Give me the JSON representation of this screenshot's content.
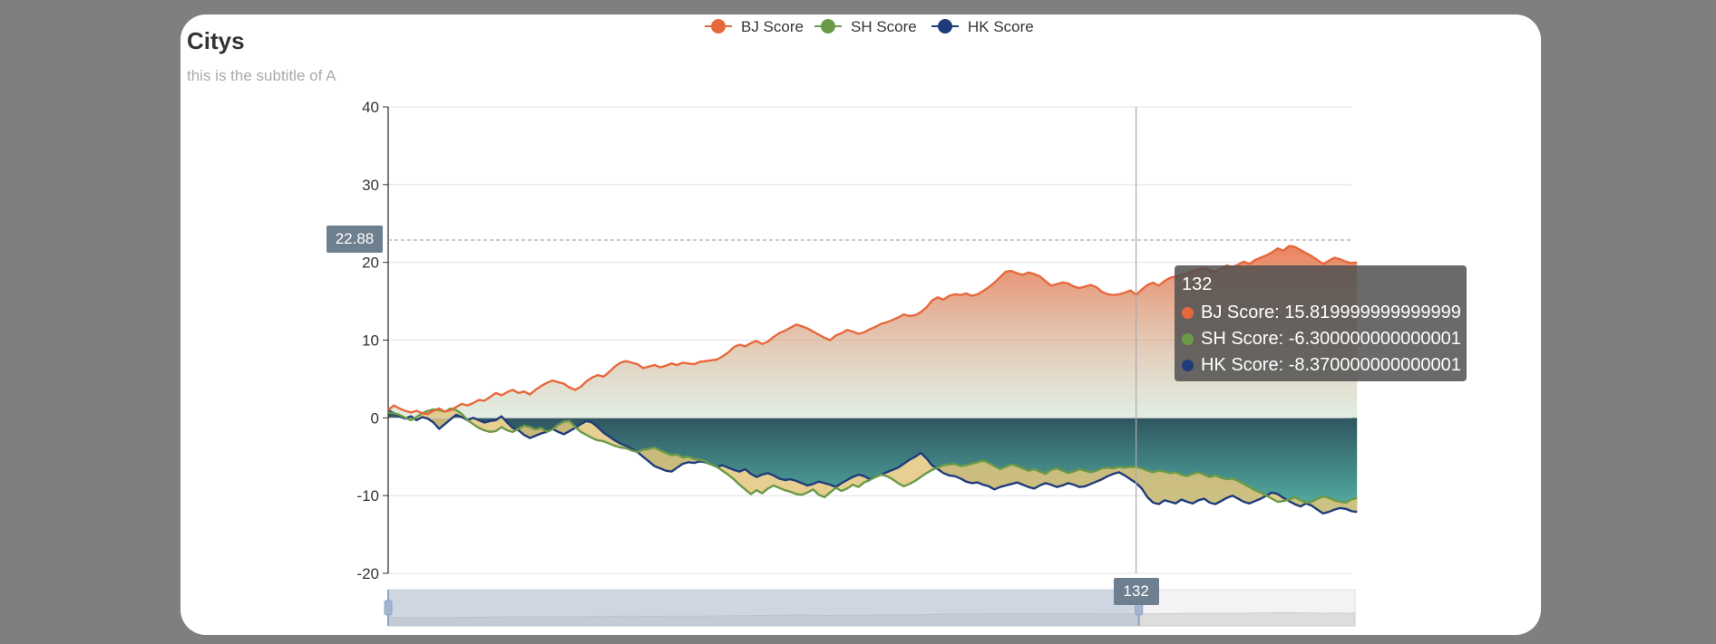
{
  "chart_data": {
    "type": "area",
    "title": "Citys",
    "subtitle": "this is the subtitle of A",
    "x": {
      "start": 0,
      "end": 170,
      "step": 1
    },
    "ylim": [
      -20,
      40
    ],
    "yticks": [
      40,
      30,
      20,
      10,
      0,
      -10,
      -20
    ],
    "grid": true,
    "legend_position": "top-center",
    "series": [
      {
        "name": "BJ Score",
        "color": "#e8683d",
        "values": [
          1.0,
          1.6,
          1.2,
          0.9,
          0.7,
          0.9,
          0.6,
          0.5,
          0.9,
          1.2,
          0.8,
          1.0,
          1.4,
          1.8,
          1.6,
          1.9,
          2.3,
          2.2,
          2.7,
          3.2,
          2.9,
          3.3,
          3.6,
          3.2,
          3.4,
          3.0,
          3.6,
          4.1,
          4.5,
          4.8,
          4.6,
          4.4,
          3.9,
          3.6,
          4.0,
          4.7,
          5.2,
          5.5,
          5.3,
          5.9,
          6.6,
          7.1,
          7.3,
          7.1,
          6.9,
          6.4,
          6.6,
          6.8,
          6.5,
          6.7,
          7.0,
          6.8,
          7.1,
          7.0,
          6.9,
          7.2,
          7.3,
          7.4,
          7.5,
          7.9,
          8.4,
          9.1,
          9.4,
          9.2,
          9.6,
          9.9,
          9.5,
          9.8,
          10.4,
          10.9,
          11.2,
          11.6,
          12.0,
          11.8,
          11.5,
          11.1,
          10.7,
          10.3,
          10.0,
          10.6,
          10.9,
          11.3,
          11.1,
          10.8,
          11.0,
          11.4,
          11.7,
          12.1,
          12.3,
          12.6,
          12.9,
          13.3,
          13.1,
          13.2,
          13.6,
          14.2,
          15.1,
          15.5,
          15.2,
          15.7,
          15.9,
          15.8,
          16.0,
          15.7,
          15.9,
          16.3,
          16.8,
          17.4,
          18.1,
          18.8,
          18.9,
          18.6,
          18.4,
          18.7,
          18.5,
          18.2,
          17.6,
          17.0,
          17.2,
          17.4,
          17.3,
          16.9,
          16.7,
          16.9,
          17.1,
          16.8,
          16.2,
          15.9,
          15.8,
          15.9,
          16.1,
          16.4,
          15.82,
          16.5,
          17.1,
          17.4,
          17.0,
          17.6,
          18.0,
          18.2,
          18.4,
          18.6,
          18.9,
          19.1,
          19.3,
          19.0,
          18.8,
          19.2,
          19.6,
          19.4,
          19.7,
          20.1,
          19.8,
          20.3,
          20.6,
          20.9,
          21.3,
          21.8,
          21.5,
          22.1,
          22.0,
          21.6,
          21.2,
          20.8,
          20.3,
          19.8,
          20.2,
          20.6,
          20.4,
          20.1,
          19.9,
          20.0
        ]
      },
      {
        "name": "SH Score",
        "color": "#6a9a48",
        "values": [
          0.7,
          0.6,
          0.4,
          0.0,
          -0.3,
          0.1,
          0.6,
          0.9,
          1.1,
          1.0,
          0.8,
          1.2,
          1.0,
          0.5,
          -0.3,
          -0.8,
          -1.3,
          -1.6,
          -1.8,
          -1.7,
          -1.2,
          -1.6,
          -1.8,
          -1.4,
          -1.0,
          -1.2,
          -1.5,
          -1.3,
          -1.8,
          -1.5,
          -0.9,
          -0.5,
          -0.4,
          -1.2,
          -1.8,
          -2.2,
          -2.6,
          -2.9,
          -3.0,
          -3.3,
          -3.6,
          -3.8,
          -3.9,
          -4.2,
          -4.4,
          -4.1,
          -4.0,
          -3.8,
          -4.2,
          -4.5,
          -4.8,
          -4.7,
          -5.1,
          -5.0,
          -5.3,
          -5.4,
          -5.6,
          -6.0,
          -6.3,
          -6.8,
          -7.3,
          -7.9,
          -8.6,
          -9.2,
          -9.8,
          -9.3,
          -9.7,
          -9.1,
          -8.7,
          -9.0,
          -9.3,
          -9.5,
          -9.8,
          -9.9,
          -9.6,
          -9.2,
          -9.9,
          -10.2,
          -9.6,
          -9.0,
          -9.4,
          -9.1,
          -8.6,
          -8.9,
          -8.3,
          -8.0,
          -7.6,
          -7.3,
          -7.5,
          -7.9,
          -8.4,
          -8.8,
          -8.5,
          -8.1,
          -7.6,
          -7.1,
          -6.7,
          -6.4,
          -6.1,
          -6.0,
          -5.9,
          -6.2,
          -6.1,
          -5.9,
          -5.7,
          -5.5,
          -5.8,
          -6.2,
          -6.6,
          -6.3,
          -6.0,
          -6.2,
          -6.5,
          -6.8,
          -6.6,
          -6.9,
          -7.2,
          -6.7,
          -6.5,
          -6.8,
          -7.1,
          -6.9,
          -6.6,
          -6.8,
          -7.0,
          -6.8,
          -6.5,
          -6.4,
          -6.5,
          -6.3,
          -6.4,
          -6.3,
          -6.3,
          -6.5,
          -6.8,
          -7.0,
          -6.8,
          -6.9,
          -7.1,
          -7.0,
          -7.3,
          -7.5,
          -7.2,
          -7.0,
          -7.3,
          -7.6,
          -7.4,
          -7.7,
          -7.9,
          -7.8,
          -8.1,
          -8.5,
          -8.9,
          -9.3,
          -9.6,
          -10.0,
          -10.4,
          -10.8,
          -10.7,
          -10.5,
          -10.2,
          -10.6,
          -10.9,
          -10.8,
          -10.4,
          -10.1,
          -10.3,
          -10.6,
          -10.8,
          -10.9,
          -10.5,
          -10.3
        ]
      },
      {
        "name": "HK Score",
        "color": "#1f3c7a",
        "values": [
          1.0,
          0.6,
          0.2,
          -0.1,
          0.2,
          -0.3,
          0.1,
          -0.1,
          -0.6,
          -1.4,
          -0.8,
          -0.2,
          0.4,
          0.1,
          -0.3,
          0.0,
          -0.3,
          -0.6,
          -0.4,
          -0.3,
          0.2,
          -0.6,
          -1.3,
          -1.6,
          -2.2,
          -2.6,
          -2.3,
          -2.0,
          -1.8,
          -1.4,
          -1.8,
          -2.1,
          -1.7,
          -1.3,
          -0.8,
          -0.4,
          -0.6,
          -1.2,
          -1.9,
          -2.4,
          -2.9,
          -3.3,
          -3.6,
          -4.0,
          -4.4,
          -5.0,
          -5.6,
          -6.2,
          -6.5,
          -6.8,
          -6.9,
          -6.4,
          -5.9,
          -5.7,
          -5.8,
          -5.6,
          -5.7,
          -6.0,
          -6.3,
          -6.1,
          -6.4,
          -6.7,
          -6.9,
          -6.6,
          -7.2,
          -7.6,
          -7.3,
          -7.1,
          -7.4,
          -7.8,
          -8.0,
          -7.9,
          -8.1,
          -8.4,
          -8.7,
          -8.5,
          -8.2,
          -8.4,
          -8.6,
          -8.9,
          -8.4,
          -8.0,
          -7.6,
          -7.3,
          -7.5,
          -7.9,
          -7.6,
          -7.3,
          -7.0,
          -6.7,
          -6.4,
          -5.9,
          -5.4,
          -5.0,
          -4.5,
          -5.2,
          -6.1,
          -6.6,
          -7.1,
          -7.4,
          -7.5,
          -7.8,
          -8.2,
          -8.4,
          -8.3,
          -8.6,
          -8.8,
          -9.2,
          -8.9,
          -8.7,
          -8.5,
          -8.3,
          -8.6,
          -8.9,
          -9.1,
          -8.7,
          -8.4,
          -8.6,
          -8.9,
          -8.7,
          -8.4,
          -8.6,
          -8.9,
          -8.8,
          -8.5,
          -8.2,
          -7.9,
          -7.5,
          -7.2,
          -7.0,
          -7.4,
          -7.9,
          -8.37,
          -9.1,
          -10.2,
          -10.9,
          -11.1,
          -10.6,
          -10.8,
          -11.0,
          -10.5,
          -10.8,
          -11.0,
          -10.6,
          -10.4,
          -10.9,
          -11.1,
          -10.7,
          -10.3,
          -10.0,
          -10.4,
          -10.8,
          -11.0,
          -10.7,
          -10.4,
          -10.0,
          -9.6,
          -9.8,
          -10.3,
          -10.7,
          -11.1,
          -11.4,
          -11.0,
          -11.3,
          -11.8,
          -12.3,
          -12.1,
          -11.8,
          -11.6,
          -11.7,
          -12.0,
          -12.1
        ]
      }
    ],
    "axis_pointer": {
      "x": 132,
      "y": 22.88
    },
    "tooltip": {
      "title": "132",
      "rows": [
        {
          "name": "BJ Score",
          "value": "15.819999999999999"
        },
        {
          "name": "SH Score",
          "value": "-6.300000000000001"
        },
        {
          "name": "HK Score",
          "value": "-8.370000000000001"
        }
      ]
    },
    "data_zoom": {
      "start": 0,
      "end": 132
    },
    "colors": {
      "bj": "#e8683d",
      "sh": "#6a9a48",
      "hk": "#1f3c7a",
      "pointer_label_bg": "#6e7f8f",
      "tooltip_bg": "rgba(80,80,80,0.85)"
    }
  }
}
